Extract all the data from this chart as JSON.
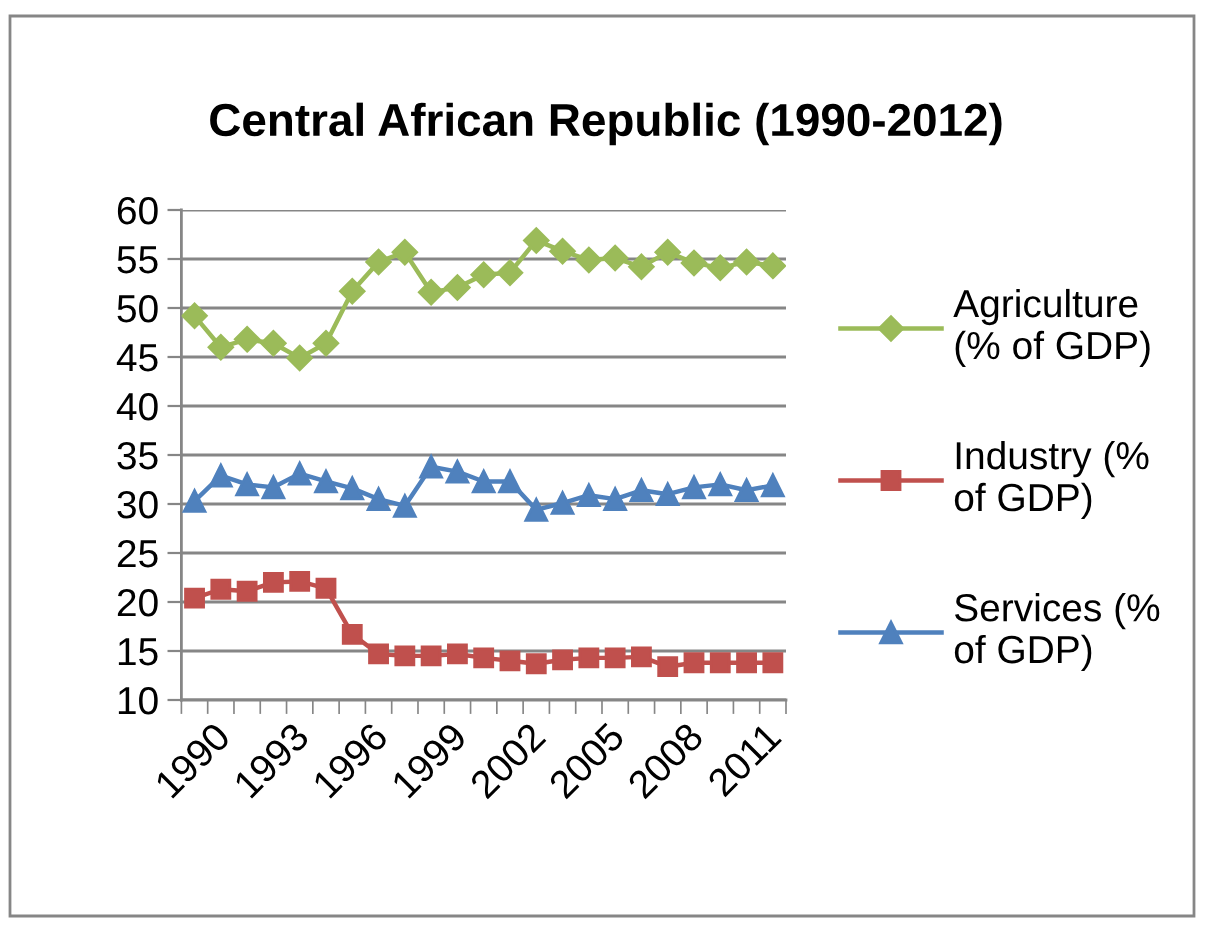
{
  "chart_data": {
    "type": "line",
    "title": "Central African Republic (1990-2012)",
    "categories": [
      "1990",
      null,
      null,
      "1993",
      null,
      null,
      "1996",
      null,
      null,
      "1999",
      null,
      null,
      "2002",
      null,
      null,
      "2005",
      null,
      null,
      "2008",
      null,
      null,
      "2011",
      null
    ],
    "series": [
      {
        "name": "Agriculture (% of GDP)",
        "color": "#9bbb59",
        "marker": "diamond",
        "values": [
          49.2,
          46.0,
          46.8,
          46.4,
          44.9,
          46.4,
          51.7,
          54.7,
          55.7,
          51.6,
          52.1,
          53.4,
          53.6,
          56.9,
          55.8,
          54.9,
          55.1,
          54.2,
          55.7,
          54.6,
          54.1,
          54.7,
          54.3
        ]
      },
      {
        "name": "Industry (% of GDP)",
        "color": "#c0504d",
        "marker": "square",
        "values": [
          20.4,
          21.3,
          21.1,
          22.0,
          22.1,
          21.4,
          16.7,
          14.7,
          14.5,
          14.5,
          14.7,
          14.3,
          14.0,
          13.7,
          14.1,
          14.3,
          14.3,
          14.4,
          13.4,
          13.8,
          13.8,
          13.8,
          13.8
        ]
      },
      {
        "name": "Services (% of GDP)",
        "color": "#4f81bd",
        "marker": "triangle",
        "values": [
          30.3,
          32.9,
          32.0,
          31.7,
          33.1,
          32.3,
          31.6,
          30.5,
          29.8,
          33.8,
          33.3,
          32.3,
          32.3,
          29.4,
          30.1,
          30.9,
          30.5,
          31.4,
          31.0,
          31.7,
          32.0,
          31.4,
          31.9
        ]
      }
    ],
    "ylim": [
      10,
      60
    ],
    "yticks": [
      10,
      15,
      20,
      25,
      30,
      35,
      40,
      45,
      50,
      55,
      60
    ],
    "grid": "y",
    "legend": "right",
    "line_style": "solid"
  }
}
